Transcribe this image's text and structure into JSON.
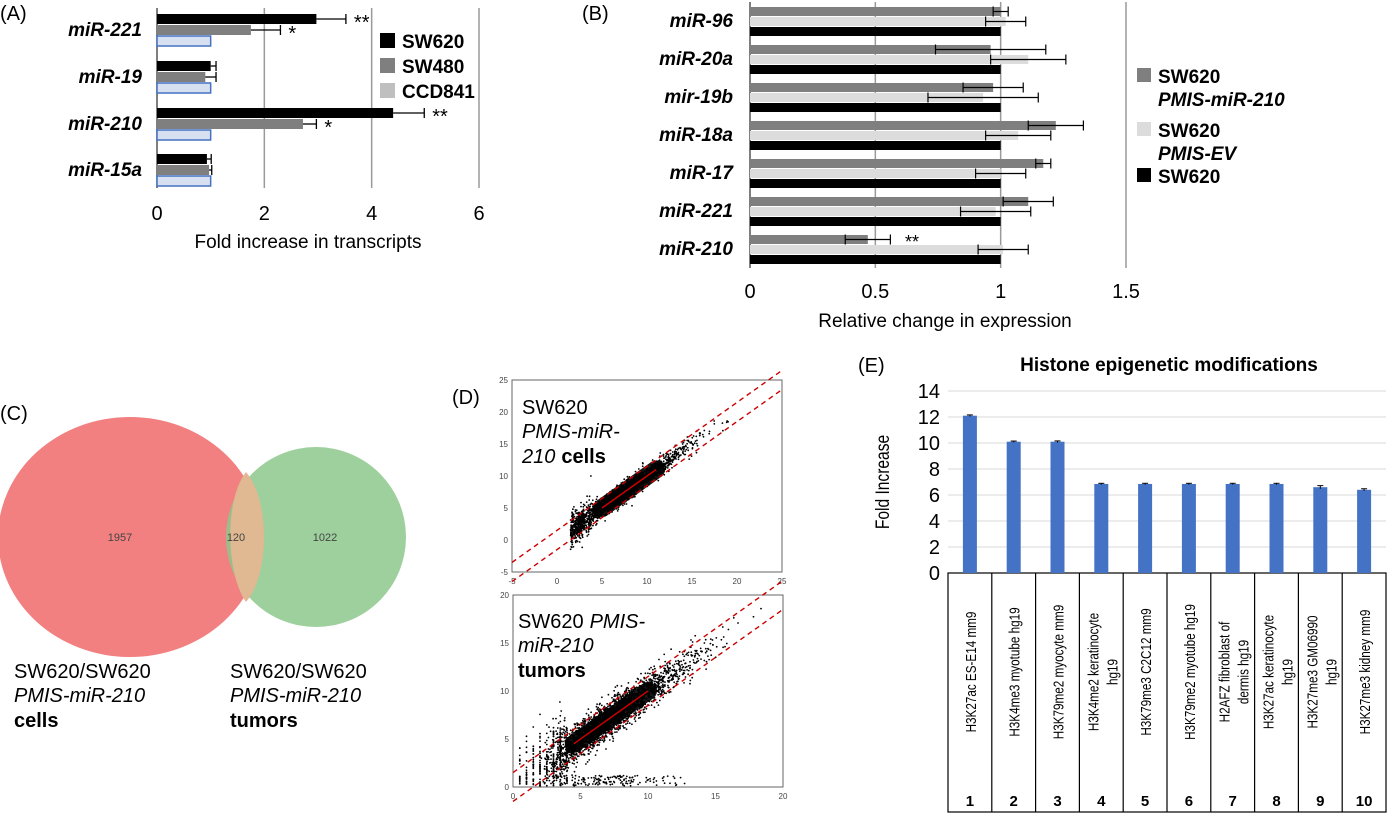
{
  "panels": {
    "A": {
      "letter": "(A)"
    },
    "B": {
      "letter": "(B)"
    },
    "C": {
      "letter": "(C)"
    },
    "D": {
      "letter": "(D)"
    },
    "E": {
      "letter": "(E)"
    }
  },
  "colors": {
    "black": "#000000",
    "dark_gray": "#7f7f7f",
    "light_gray": "#bfbfbf",
    "very_light_gray": "#dcdcdc",
    "blue": "#4472c4",
    "venn_red": "#f28080",
    "venn_green": "#8cc88c",
    "red_dash": "#cc0000"
  },
  "chart_data": [
    {
      "panel": "A",
      "type": "bar",
      "orientation": "horizontal",
      "categories": [
        "miR-221",
        "miR-19",
        "miR-210",
        "miR-15a"
      ],
      "series": [
        {
          "name": "SW620",
          "values": [
            2.97,
            1.0,
            4.4,
            0.93
          ],
          "errors": [
            0.55,
            0.1,
            0.58,
            0.08
          ]
        },
        {
          "name": "SW480",
          "values": [
            1.75,
            0.9,
            2.72,
            0.97
          ],
          "errors": [
            0.55,
            0.2,
            0.25,
            0.05
          ]
        },
        {
          "name": "CCD841",
          "values": [
            1.0,
            1.0,
            1.0,
            1.0
          ],
          "errors": [
            0,
            0,
            0,
            0
          ]
        }
      ],
      "significance": [
        {
          "category": "miR-221",
          "series": "SW620",
          "label": "**"
        },
        {
          "category": "miR-221",
          "series": "SW480",
          "label": "*"
        },
        {
          "category": "miR-210",
          "series": "SW620",
          "label": "**"
        },
        {
          "category": "miR-210",
          "series": "SW480",
          "label": "*"
        }
      ],
      "xticks": [
        "0",
        "2",
        "4",
        "6"
      ],
      "xlim": [
        0,
        6
      ],
      "xlabel": "Fold increase in transcripts",
      "grid": true,
      "legend": "top-right"
    },
    {
      "panel": "B",
      "type": "bar",
      "orientation": "horizontal",
      "categories": [
        "miR-96",
        "miR-20a",
        "mir-19b",
        "miR-18a",
        "miR-17",
        "miR-221",
        "miR-210"
      ],
      "series": [
        {
          "name": "SW620 PMIS-miR-210",
          "name_line1": "SW620",
          "name_line2": "PMIS-miR-210",
          "values": [
            1.0,
            0.96,
            0.97,
            1.22,
            1.17,
            1.11,
            0.47
          ],
          "errors": [
            0.03,
            0.22,
            0.12,
            0.11,
            0.03,
            0.1,
            0.09
          ]
        },
        {
          "name": "SW620 PMIS-EV",
          "name_line1": "SW620",
          "name_line2": "PMIS-EV",
          "values": [
            1.02,
            1.11,
            0.93,
            1.07,
            1.0,
            0.98,
            1.01
          ],
          "errors": [
            0.08,
            0.15,
            0.22,
            0.13,
            0.1,
            0.14,
            0.1
          ]
        },
        {
          "name": "SW620",
          "name_line1": "SW620",
          "name_line2": "",
          "values": [
            1.0,
            1.0,
            1.0,
            1.0,
            1.0,
            1.0,
            1.0
          ],
          "errors": [
            0,
            0,
            0,
            0,
            0,
            0,
            0
          ]
        }
      ],
      "significance": [
        {
          "category": "miR-210",
          "label": "**"
        }
      ],
      "xticks": [
        "0",
        "0.5",
        "1",
        "1.5"
      ],
      "xlim": [
        0,
        1.5
      ],
      "xlabel": "Relative change in expression",
      "grid": true,
      "legend": "right"
    },
    {
      "panel": "C",
      "type": "venn",
      "sets": [
        {
          "only": "1957",
          "label_line1": "SW620/SW620",
          "label_line2": "PMIS-miR-210",
          "label_line3": "cells",
          "color": "#f28080"
        },
        {
          "only": "1022",
          "label_line1": "SW620/SW620",
          "label_line2": "PMIS-miR-210",
          "label_line3": "tumors",
          "color": "#8cc88c"
        }
      ],
      "intersection": "120"
    },
    {
      "panel": "D",
      "type": "scatter",
      "plots": [
        {
          "caption_line1": "SW620",
          "caption_line2": "PMIS-miR-",
          "caption_line3": "210",
          "caption_bold": "cells",
          "xticks": [
            "-5",
            "0",
            "5",
            "10",
            "15",
            "20",
            "25"
          ],
          "yticks": [
            "25",
            "20",
            "15",
            "10",
            "5",
            "0",
            "-5"
          ],
          "xlim": [
            -5,
            25
          ],
          "ylim": [
            -5,
            25
          ]
        },
        {
          "caption_line1": "SW620",
          "caption_line1_italic": "PMIS-",
          "caption_line2": "miR-210",
          "caption_bold": "tumors",
          "xticks": [
            "0",
            "5",
            "10",
            "15",
            "20"
          ],
          "yticks": [
            "20",
            "15",
            "10",
            "5",
            "0"
          ],
          "xlim": [
            0,
            20
          ],
          "ylim": [
            0,
            20
          ]
        }
      ]
    },
    {
      "panel": "E",
      "type": "bar",
      "title": "Histone epigenetic modifications",
      "ylabel": "Fold Increase",
      "yticks": [
        "14",
        "12",
        "10",
        "8",
        "6",
        "4",
        "2",
        "0"
      ],
      "ylim": [
        0,
        14
      ],
      "categories": [
        "H3K27ac ES-E14 mm9",
        "H3K4me3 myotube hg19",
        "H3K79me2 myocyte mm9",
        "H3K4me2 keratinocyte hg19",
        "H3K79me3 C2C12 mm9",
        "H3K79me2 myotube hg19",
        "H2AFZ fibroblast of dermis hg19",
        "H3K27ac keratinocyte hg19",
        "H3K27me3 GM06990 hg19",
        "H3K27me3 kidney mm9"
      ],
      "category_lines": [
        [
          "H3K27ac ES-E14 mm9"
        ],
        [
          "H3K4me3 myotube hg19"
        ],
        [
          "H3K79me2 myocyte mm9"
        ],
        [
          "H3K4me2 keratinocyte",
          "hg19"
        ],
        [
          "H3K79me3 C2C12 mm9"
        ],
        [
          "H3K79me2 myotube hg19"
        ],
        [
          "H2AFZ fibroblast of",
          "dermis hg19"
        ],
        [
          "H3K27ac keratinocyte",
          "hg19"
        ],
        [
          "H3K27me3 GM06990",
          "hg19"
        ],
        [
          "H3K27me3 kidney mm9"
        ]
      ],
      "numbers": [
        "1",
        "2",
        "3",
        "4",
        "5",
        "6",
        "7",
        "8",
        "9",
        "10"
      ],
      "values": [
        12.1,
        10.1,
        10.1,
        6.85,
        6.85,
        6.85,
        6.85,
        6.85,
        6.6,
        6.4
      ],
      "errors": [
        0.06,
        0.05,
        0.06,
        0.05,
        0.05,
        0.05,
        0.05,
        0.05,
        0.12,
        0.08
      ],
      "color": "#4472c4",
      "grid": true
    }
  ]
}
